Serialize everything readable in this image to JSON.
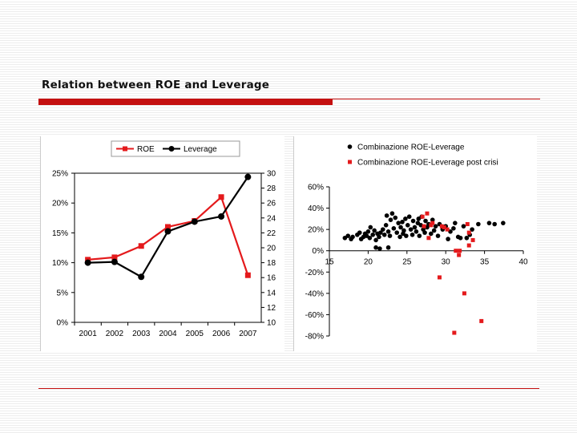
{
  "slide": {
    "title": "Relation between ROE and Leverage"
  },
  "chart_data": [
    {
      "type": "line",
      "title": "",
      "categories": [
        "2001",
        "2002",
        "2003",
        "2004",
        "2005",
        "2006",
        "2007"
      ],
      "series": [
        {
          "name": "ROE",
          "axis": "left",
          "color": "#e41a1c",
          "marker": "square",
          "values": [
            10.5,
            10.9,
            12.8,
            16.0,
            17.0,
            21.0,
            7.9
          ]
        },
        {
          "name": "Leverage",
          "axis": "right",
          "color": "#000000",
          "marker": "circle",
          "values": [
            18.0,
            18.1,
            16.1,
            22.2,
            23.5,
            24.2,
            29.5
          ]
        }
      ],
      "left_axis": {
        "min": 0,
        "max": 25,
        "ticks": [
          0,
          5,
          10,
          15,
          20,
          25
        ],
        "tick_labels": [
          "0%",
          "5%",
          "10%",
          "15%",
          "20%",
          "25%"
        ]
      },
      "right_axis": {
        "min": 10,
        "max": 30,
        "ticks": [
          10,
          12,
          14,
          16,
          18,
          20,
          22,
          24,
          26,
          28,
          30
        ],
        "tick_labels": [
          "10",
          "12",
          "14",
          "16",
          "18",
          "20",
          "22",
          "24",
          "26",
          "28",
          "30"
        ]
      },
      "legend": {
        "position": "top",
        "labels": [
          "ROE",
          "Leverage"
        ]
      },
      "grid": false
    },
    {
      "type": "scatter",
      "title": "",
      "xlim": [
        15,
        40
      ],
      "ylim": [
        -80,
        60
      ],
      "x_ticks": [
        15,
        20,
        25,
        30,
        35,
        40
      ],
      "x_tick_labels": [
        "15",
        "20",
        "25",
        "30",
        "35",
        "40"
      ],
      "y_ticks": [
        60,
        40,
        20,
        0,
        -20,
        -40,
        -60,
        -80
      ],
      "y_tick_labels": [
        "60%",
        "40%",
        "20%",
        "0%",
        "-20%",
        "-40%",
        "-60%",
        "-80%"
      ],
      "legend": {
        "position": "top-right",
        "labels": [
          "Combinazione ROE-Leverage",
          "Combinazione ROE-Leverage post crisi"
        ]
      },
      "grid": false,
      "series": [
        {
          "name": "Combinazione ROE-Leverage",
          "color": "#000000",
          "marker": "circle",
          "points": [
            [
              17.0,
              12
            ],
            [
              17.4,
              14
            ],
            [
              17.8,
              11
            ],
            [
              18.0,
              13
            ],
            [
              18.6,
              15
            ],
            [
              18.9,
              17
            ],
            [
              19.1,
              11
            ],
            [
              19.4,
              13
            ],
            [
              19.6,
              16
            ],
            [
              19.8,
              14
            ],
            [
              20.0,
              18
            ],
            [
              20.2,
              12
            ],
            [
              20.3,
              22
            ],
            [
              20.6,
              15
            ],
            [
              20.8,
              19
            ],
            [
              21.0,
              10
            ],
            [
              21.2,
              16
            ],
            [
              21.4,
              13
            ],
            [
              21.6,
              17
            ],
            [
              21.9,
              20
            ],
            [
              22.1,
              15
            ],
            [
              22.3,
              24
            ],
            [
              22.4,
              33
            ],
            [
              22.6,
              18
            ],
            [
              22.8,
              14
            ],
            [
              22.9,
              29
            ],
            [
              23.1,
              35
            ],
            [
              23.3,
              21
            ],
            [
              23.5,
              31
            ],
            [
              23.7,
              17
            ],
            [
              23.9,
              26
            ],
            [
              24.1,
              13
            ],
            [
              24.2,
              22
            ],
            [
              24.4,
              27
            ],
            [
              24.5,
              16
            ],
            [
              24.6,
              19
            ],
            [
              24.8,
              30
            ],
            [
              24.9,
              14
            ],
            [
              25.1,
              24
            ],
            [
              25.3,
              32
            ],
            [
              25.5,
              20
            ],
            [
              25.7,
              15
            ],
            [
              25.8,
              28
            ],
            [
              26.0,
              22
            ],
            [
              26.2,
              18
            ],
            [
              26.4,
              26
            ],
            [
              26.5,
              30
            ],
            [
              26.6,
              14
            ],
            [
              26.8,
              24
            ],
            [
              26.9,
              32
            ],
            [
              27.1,
              20
            ],
            [
              27.3,
              17
            ],
            [
              27.4,
              28
            ],
            [
              27.6,
              22
            ],
            [
              27.8,
              25
            ],
            [
              28.1,
              16
            ],
            [
              28.3,
              29
            ],
            [
              28.5,
              19
            ],
            [
              28.7,
              23
            ],
            [
              29.0,
              14
            ],
            [
              29.2,
              25
            ],
            [
              29.6,
              20
            ],
            [
              30.0,
              23
            ],
            [
              30.3,
              11
            ],
            [
              30.6,
              18
            ],
            [
              31.0,
              21
            ],
            [
              31.2,
              26
            ],
            [
              31.6,
              13
            ],
            [
              31.9,
              12
            ],
            [
              32.3,
              23
            ],
            [
              32.7,
              12
            ],
            [
              33.1,
              15
            ],
            [
              33.4,
              20
            ],
            [
              34.2,
              25
            ],
            [
              35.6,
              26
            ],
            [
              36.3,
              25
            ],
            [
              37.4,
              26
            ],
            [
              21.5,
              2
            ],
            [
              21.0,
              3
            ],
            [
              22.6,
              3
            ]
          ]
        },
        {
          "name": "Combinazione ROE-Leverage post crisi",
          "color": "#e41a1c",
          "marker": "square",
          "points": [
            [
              27.0,
              32
            ],
            [
              27.6,
              35
            ],
            [
              28.3,
              26
            ],
            [
              27.2,
              23
            ],
            [
              28.1,
              24
            ],
            [
              27.8,
              12
            ],
            [
              29.5,
              23
            ],
            [
              29.8,
              22
            ],
            [
              30.2,
              20
            ],
            [
              31.3,
              0
            ],
            [
              31.8,
              0
            ],
            [
              31.7,
              -4
            ],
            [
              32.8,
              25
            ],
            [
              33.0,
              17
            ],
            [
              33.5,
              10
            ],
            [
              33.0,
              5
            ],
            [
              29.2,
              -25
            ],
            [
              32.4,
              -40
            ],
            [
              34.6,
              -66
            ],
            [
              31.1,
              -77
            ]
          ]
        }
      ]
    }
  ]
}
